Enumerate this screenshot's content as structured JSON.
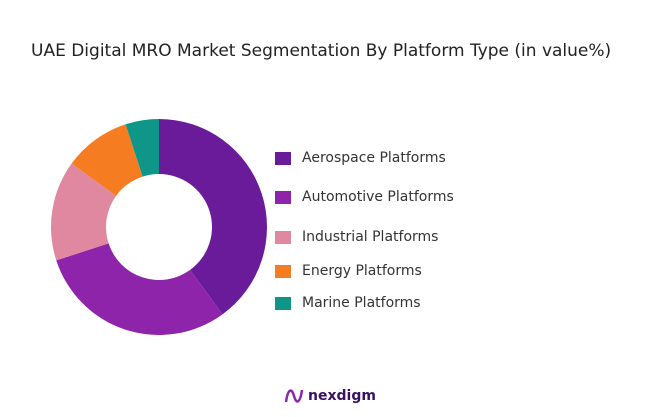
{
  "chart_data": {
    "type": "pie",
    "donut": true,
    "title": "UAE Digital MRO Market Segmentation By Platform Type (in value%)",
    "categories": [
      "Aerospace Platforms",
      "Automotive Platforms",
      "Industrial Platforms",
      "Energy Platforms",
      "Marine Platforms"
    ],
    "values": [
      40,
      30,
      15,
      10,
      5
    ],
    "colors": [
      "#6a1b9a",
      "#8e24aa",
      "#e088a0",
      "#f57c20",
      "#0e9688"
    ],
    "legend": "right"
  },
  "brand": "nexdigm"
}
